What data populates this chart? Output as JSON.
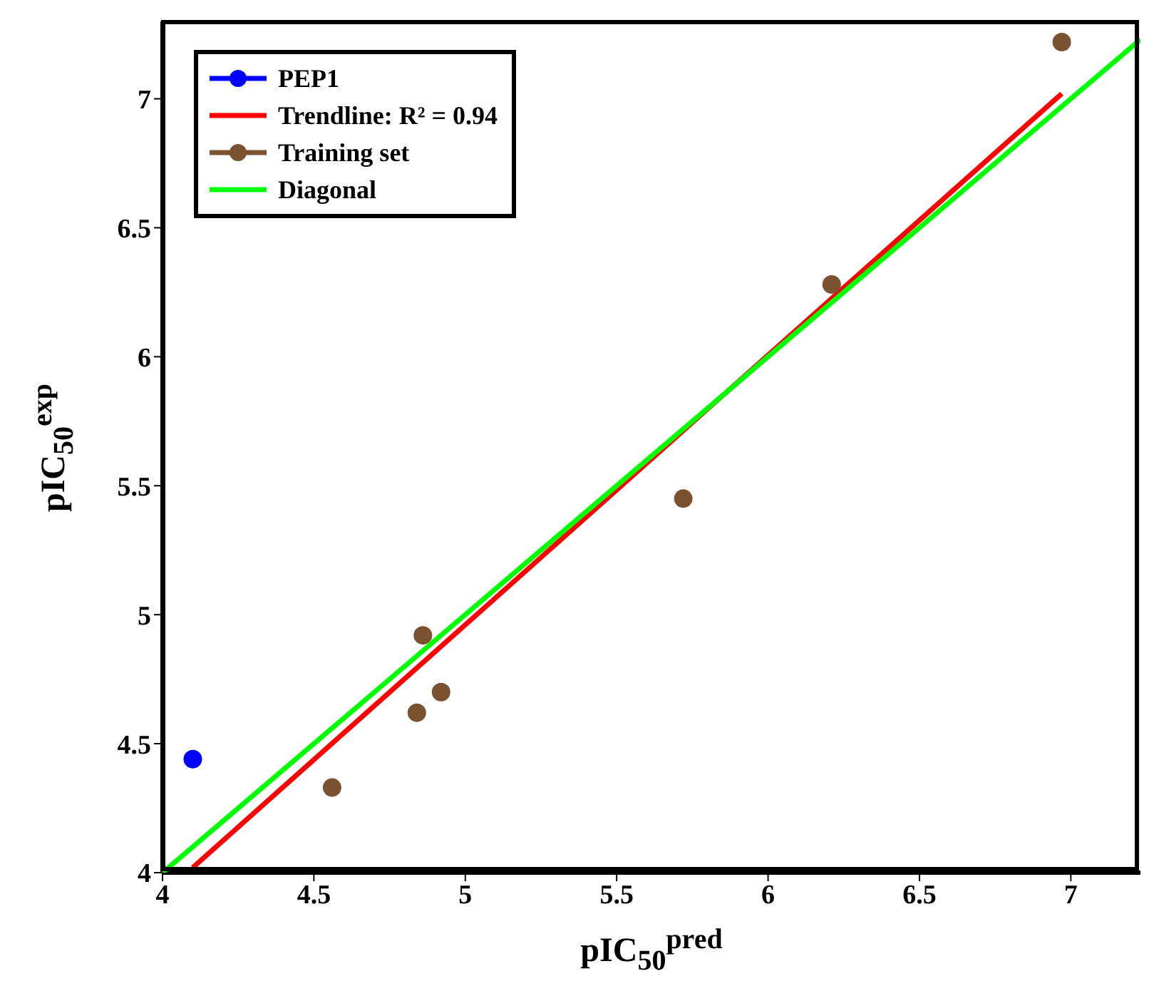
{
  "chart_data": {
    "type": "scatter",
    "xlabel": "pIC$_{50}$$^{pred}$",
    "ylabel": "pIC$_{50}$$^{exp}$",
    "xlim": [
      4,
      7.23
    ],
    "ylim": [
      4,
      7.3
    ],
    "xticks": [
      4,
      4.5,
      5,
      5.5,
      6,
      6.5,
      7
    ],
    "yticks": [
      4,
      4.5,
      5,
      5.5,
      6,
      6.5,
      7
    ],
    "legend": "top left",
    "series": [
      {
        "name": "PEP1",
        "color": "#0000ff",
        "marker": "circle",
        "x": [
          4.1
        ],
        "values": [
          4.44
        ]
      },
      {
        "name": "Trendline: R² = 0.94",
        "type": "line",
        "color": "#ff0000",
        "marker": "none",
        "x": [
          4.1,
          6.97
        ],
        "values": [
          4.02,
          7.02
        ]
      },
      {
        "name": "Training set",
        "color": "#7a5230",
        "marker": "circle",
        "x": [
          4.56,
          4.84,
          4.86,
          4.92,
          5.72,
          6.21,
          6.97
        ],
        "values": [
          4.33,
          4.62,
          4.92,
          4.7,
          5.45,
          6.28,
          7.22
        ]
      },
      {
        "name": "Diagonal",
        "type": "line",
        "color": "#00ff00",
        "marker": "none",
        "x": [
          4,
          7.23
        ],
        "values": [
          4,
          7.23
        ]
      }
    ]
  }
}
